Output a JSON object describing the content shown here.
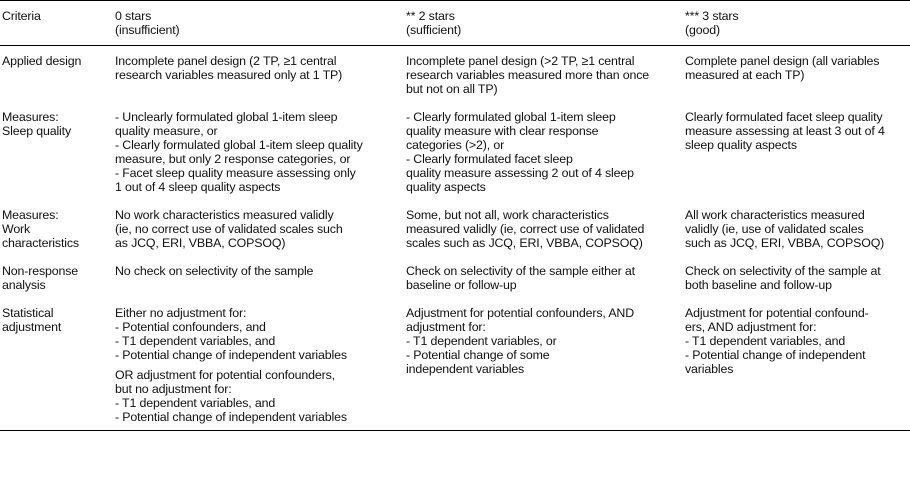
{
  "header": {
    "criteria": "Criteria",
    "col0": [
      "0 stars",
      "(insufficient)"
    ],
    "col2": [
      "** 2 stars",
      "(sufficient)"
    ],
    "col3": [
      "*** 3 stars",
      "(good)"
    ]
  },
  "rows": [
    {
      "name": "applied-design",
      "criteria": [
        "Applied design"
      ],
      "c0": [
        [
          "Incomplete panel design (2 TP, ≥1 central",
          "research variables measured only at 1 TP)"
        ]
      ],
      "c2": [
        [
          "Incomplete panel design (>2 TP, ≥1 central",
          "research variables measured more than once",
          "but not on all TP)"
        ]
      ],
      "c3": [
        [
          "Complete panel design (all variables",
          "measured at each TP)"
        ]
      ]
    },
    {
      "name": "measures-sleep-quality",
      "criteria": [
        "Measures:",
        "Sleep quality"
      ],
      "c0": [
        [
          "- Unclearly formulated global 1-item sleep",
          "quality measure, or",
          "-  Clearly formulated global 1-item sleep quality",
          "measure, but only 2 response categories, or",
          "- Facet sleep quality measure assessing only",
          "1 out of 4 sleep quality aspects"
        ]
      ],
      "c2": [
        [
          "- Clearly formulated global 1-item sleep",
          "quality measure with clear response",
          "categories (>2), or",
          "- Clearly formulated facet sleep",
          "quality measure assessing 2 out of 4 sleep",
          "quality aspects"
        ]
      ],
      "c3": [
        [
          "Clearly formulated facet sleep quality",
          "measure assessing at least 3 out of 4",
          "sleep quality aspects"
        ]
      ]
    },
    {
      "name": "measures-work-characteristics",
      "criteria": [
        "Measures:",
        "Work",
        "characteristics"
      ],
      "c0": [
        [
          "No work characteristics measured validly",
          "(ie, no correct use of validated scales such",
          "as JCQ, ERI, VBBA, COPSOQ)"
        ]
      ],
      "c2": [
        [
          "Some, but not all, work characteristics",
          "measured validly (ie, correct use of validated",
          "scales such as JCQ, ERI, VBBA, COPSOQ)"
        ]
      ],
      "c3": [
        [
          "All work characteristics measured",
          "validly (ie, use of validated scales",
          "such as JCQ, ERI, VBBA, COPSOQ)"
        ]
      ]
    },
    {
      "name": "non-response-analysis",
      "criteria": [
        "Non-response",
        "analysis"
      ],
      "c0": [
        [
          "No check on selectivity of the sample"
        ]
      ],
      "c2": [
        [
          "Check on selectivity of the sample either at",
          "baseline or follow-up"
        ]
      ],
      "c3": [
        [
          "Check on selectivity of the sample at",
          "both baseline and follow-up"
        ]
      ]
    },
    {
      "name": "statistical-adjustment",
      "criteria": [
        "Statistical",
        "adjustment"
      ],
      "c0": [
        [
          "Either no adjustment for:",
          "- Potential confounders, and",
          "- T1 dependent variables, and",
          "- Potential change of independent variables"
        ],
        [
          "OR adjustment for potential confounders,",
          "but no adjustment for:",
          "- T1 dependent variables, and",
          "- Potential change of independent variables"
        ]
      ],
      "c2": [
        [
          "Adjustment for potential confounders, AND",
          "adjustment for:",
          "- T1 dependent variables, or",
          "- Potential change of some",
          "independent variables"
        ]
      ],
      "c3": [
        [
          "Adjustment for potential confound-",
          "ers, AND adjustment for:",
          "- T1 dependent variables, and",
          "- Potential change of independent",
          "variables"
        ]
      ]
    }
  ]
}
